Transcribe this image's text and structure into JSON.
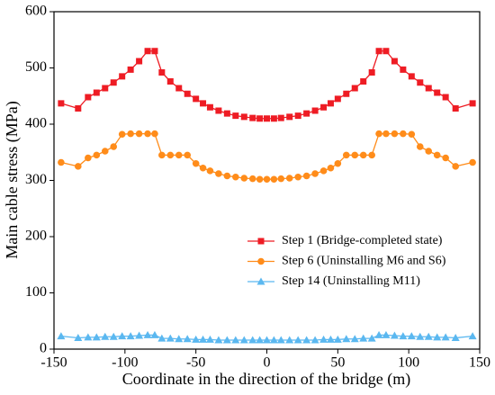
{
  "chart_data": {
    "type": "line",
    "xlabel": "Coordinate in the direction of the bridge (m)",
    "ylabel": "Main cable stress (MPa)",
    "x": [
      -145,
      -133,
      -126,
      -120,
      -114,
      -108,
      -102,
      -96,
      -90,
      -84,
      -79,
      -74,
      -68,
      -62,
      -56,
      -50,
      -45,
      -40,
      -34,
      -28,
      -22,
      -16,
      -10,
      -5,
      0,
      5,
      10,
      16,
      22,
      28,
      34,
      40,
      45,
      50,
      56,
      62,
      68,
      74,
      79,
      84,
      90,
      96,
      102,
      108,
      114,
      120,
      126,
      133,
      145
    ],
    "series": [
      {
        "name": "Step 1 (Bridge-completed state)",
        "color": "#ee1c24",
        "marker": "square",
        "values": [
          437,
          428,
          448,
          456,
          464,
          474,
          485,
          497,
          512,
          530,
          530,
          492,
          476,
          464,
          454,
          445,
          437,
          430,
          424,
          419,
          415,
          413,
          411,
          410,
          410,
          410,
          411,
          413,
          415,
          419,
          424,
          430,
          437,
          445,
          454,
          464,
          476,
          492,
          530,
          530,
          512,
          497,
          485,
          474,
          464,
          456,
          448,
          428,
          437
        ]
      },
      {
        "name": "Step 6 (Uninstalling M6 and S6)",
        "color": "#ff8c1a",
        "marker": "circle",
        "values": [
          332,
          325,
          340,
          345,
          352,
          360,
          382,
          383,
          383,
          383,
          383,
          345,
          345,
          345,
          345,
          330,
          322,
          317,
          312,
          308,
          306,
          304,
          303,
          302,
          302,
          302,
          303,
          304,
          306,
          308,
          312,
          317,
          322,
          330,
          345,
          345,
          345,
          345,
          383,
          383,
          383,
          383,
          382,
          360,
          352,
          345,
          340,
          325,
          332
        ]
      },
      {
        "name": "Step 14 (Uninstalling M11)",
        "color": "#5bb8f0",
        "marker": "triangle",
        "values": [
          23,
          20,
          21,
          21,
          22,
          22,
          23,
          23,
          24,
          25,
          25,
          19,
          19,
          18,
          18,
          17,
          17,
          17,
          16,
          16,
          16,
          16,
          16,
          16,
          16,
          16,
          16,
          16,
          16,
          16,
          16,
          17,
          17,
          17,
          18,
          18,
          19,
          19,
          25,
          25,
          24,
          23,
          23,
          22,
          22,
          21,
          21,
          20,
          23
        ]
      }
    ],
    "xlim": [
      -150,
      150
    ],
    "xticks": [
      -150,
      -100,
      -50,
      0,
      50,
      100,
      150
    ],
    "ylim": [
      0,
      600
    ],
    "yticks": [
      0,
      100,
      200,
      300,
      400,
      500,
      600
    ],
    "legend": "right"
  }
}
